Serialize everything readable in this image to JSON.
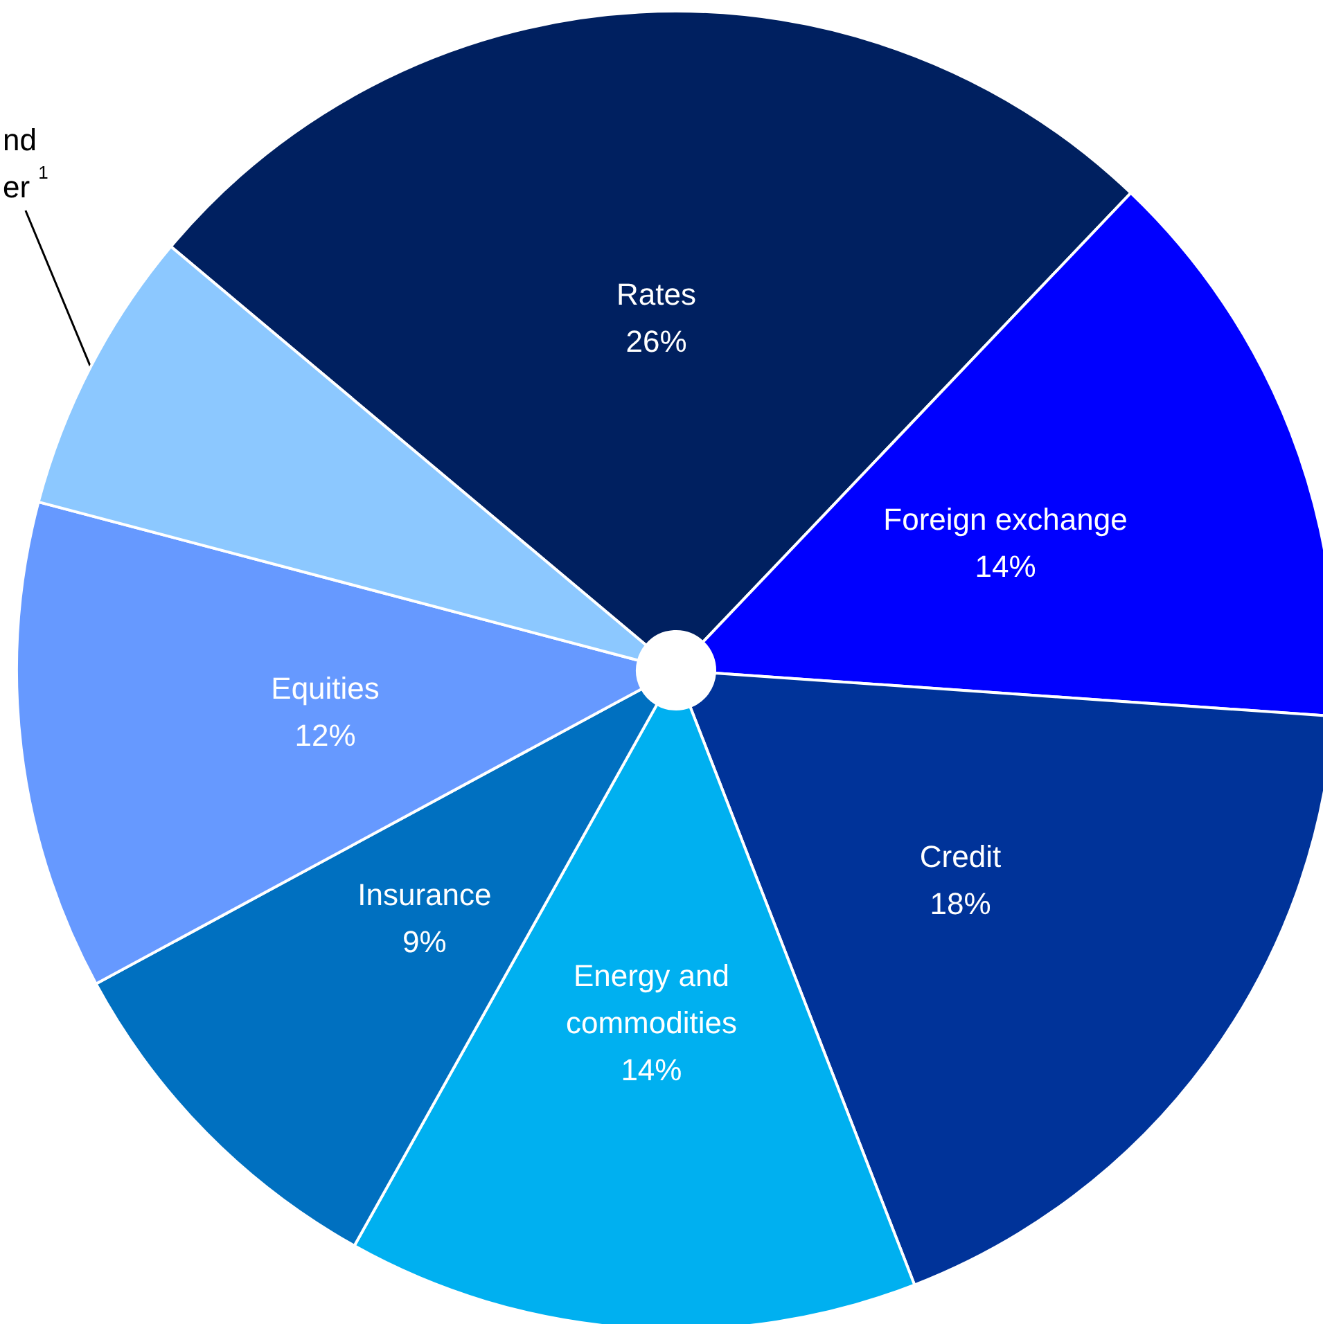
{
  "chart_data": {
    "type": "pie",
    "categories": [
      "Rates",
      "Foreign exchange",
      "Credit",
      "Energy and\ncommodities",
      "Insurance",
      "Equities",
      "nd\ner $^{1}$"
    ],
    "values": [
      26,
      14,
      18,
      14,
      9,
      12,
      7
    ],
    "value_labels": [
      "26%",
      "14%",
      "18%",
      "14%",
      "9%",
      "12%",
      null
    ],
    "colors": [
      "#002060",
      "#0000ff",
      "#003399",
      "#00b0f0",
      "#0070c0",
      "#6699ff",
      "#8cc8ff"
    ],
    "legend": false
  }
}
